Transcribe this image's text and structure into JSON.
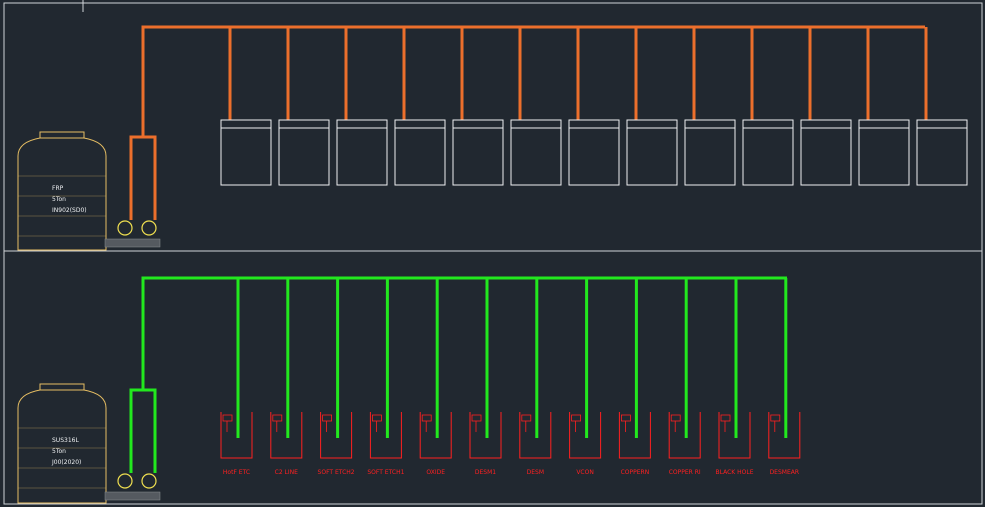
{
  "top_tank": {
    "lines": [
      "FRP",
      "5Ton",
      "IN902(SD0)"
    ]
  },
  "bottom_tank": {
    "lines": [
      "SUS316L",
      "5Ton",
      "J00(2020)"
    ]
  },
  "stations": [
    "HotF ETC",
    "C2 LINE",
    "SOFT ETCH2",
    "SOFT ETCH1",
    "OXIDE",
    "DESM1",
    "DESM",
    "VCON",
    "COPPERN",
    "COPPER RI",
    "BLACK HOLE",
    "DESMEAR"
  ]
}
